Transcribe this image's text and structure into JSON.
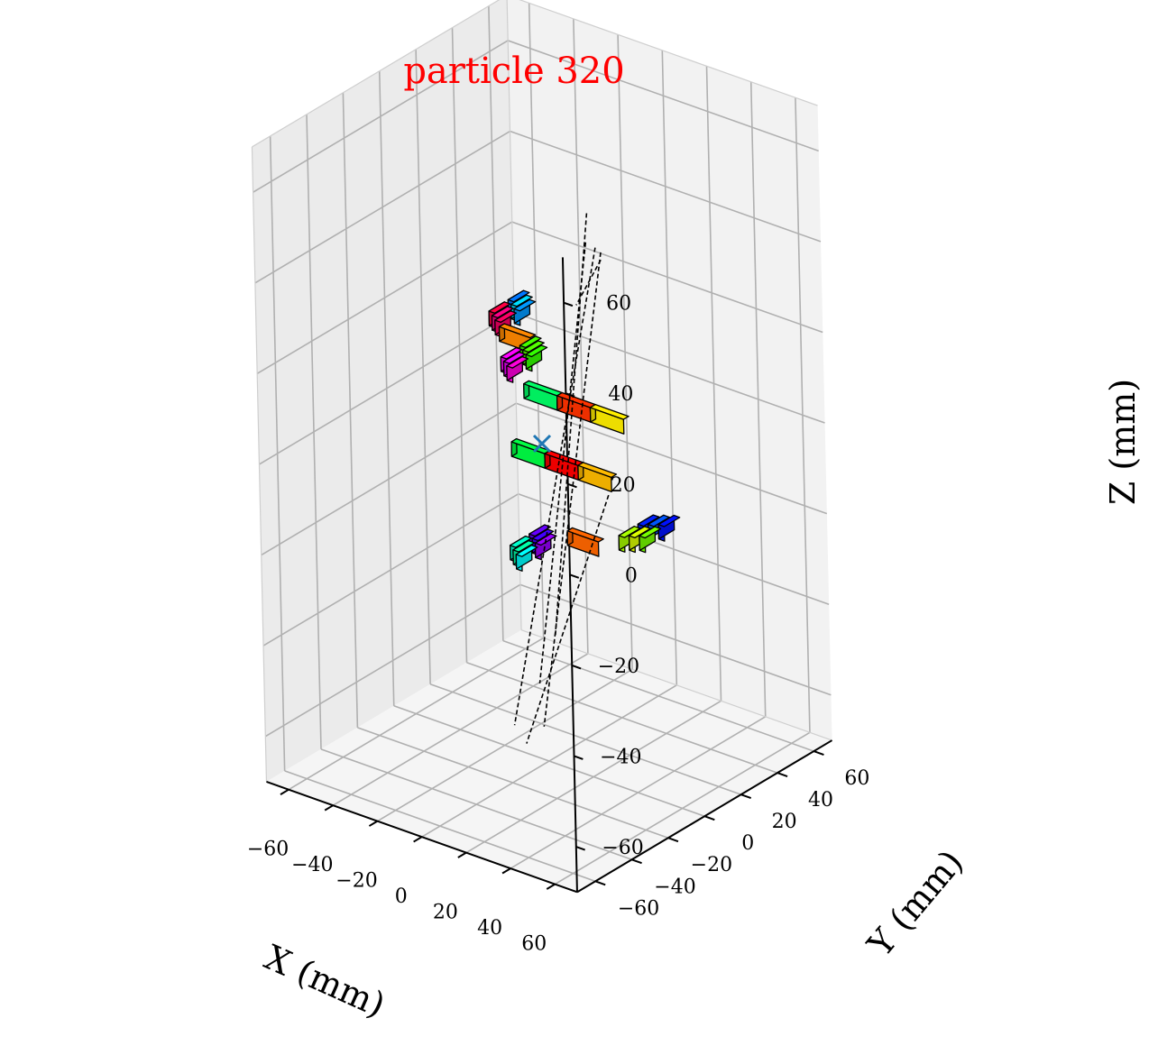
{
  "chart_data": {
    "type": "scatter",
    "title": "particle 320",
    "xlabel": "X (mm)",
    "ylabel": "Y (mm)",
    "zlabel": "Z (mm)",
    "xlim": [
      -70,
      70
    ],
    "ylim": [
      -70,
      70
    ],
    "zlim": [
      -70,
      70
    ],
    "x_ticks": [
      -60,
      -40,
      -20,
      0,
      20,
      40,
      60
    ],
    "y_ticks": [
      -60,
      -40,
      -20,
      0,
      20,
      40,
      60
    ],
    "z_ticks": [
      -60,
      -40,
      -20,
      0,
      20,
      40,
      60
    ],
    "x_tick_labels": [
      "−60",
      "−40",
      "−20",
      "0",
      "20",
      "40",
      "60"
    ],
    "y_tick_labels": [
      "−60",
      "−40",
      "−20",
      "0",
      "20",
      "40",
      "60"
    ],
    "z_tick_labels": [
      "−60",
      "−40",
      "−20",
      "0",
      "20",
      "40",
      "60"
    ],
    "grid": true,
    "marker": {
      "x": 0,
      "y": 0,
      "z": 0,
      "symbol": "x",
      "color": "#1f77b4"
    },
    "long_bars": [
      {
        "x0": -30,
        "x1": -15,
        "y": 28,
        "z": 0,
        "color": "#00ff66"
      },
      {
        "x0": -15,
        "x1": 0,
        "y": 28,
        "z": 0,
        "color": "#ff3300"
      },
      {
        "x0": 0,
        "x1": 15,
        "y": 28,
        "z": 0,
        "color": "#ffee00"
      },
      {
        "x0": -6,
        "x1": 9,
        "y": -8,
        "z": 0,
        "color": "#00ff44"
      },
      {
        "x0": 9,
        "x1": 24,
        "y": -8,
        "z": 0,
        "color": "#ff0000"
      },
      {
        "x0": 24,
        "x1": 39,
        "y": -8,
        "z": 0,
        "color": "#ffbb00"
      },
      {
        "x0": -64,
        "x1": -50,
        "y": 56,
        "z": 0,
        "color": "#ff8800"
      },
      {
        "x0": 52,
        "x1": 66,
        "y": -48,
        "z": 0,
        "color": "#ff6600"
      }
    ],
    "crystal_pairs": [
      {
        "x": -73,
        "y": 71,
        "z": 0,
        "colors": [
          "#ff0044",
          "#0077ff"
        ]
      },
      {
        "x": -70,
        "y": 69,
        "z": 0,
        "colors": [
          "#ff0088",
          "#00ddff"
        ]
      },
      {
        "x": -67,
        "y": 67,
        "z": 0,
        "colors": [
          "#ff0066",
          "#0099ff"
        ]
      },
      {
        "x": -48,
        "y": 47,
        "z": 0,
        "colors": [
          "#ff00ff",
          "#44ff00"
        ]
      },
      {
        "x": -45,
        "y": 45,
        "z": 0,
        "colors": [
          "#ee00ff",
          "#55ff00"
        ]
      },
      {
        "x": -42,
        "y": 43,
        "z": 0,
        "colors": [
          "#ff00dd",
          "#33ff00"
        ]
      },
      {
        "x": 50,
        "y": -64,
        "z": 0,
        "colors": [
          "#00ffff",
          "#9900ff"
        ]
      },
      {
        "x": 47,
        "y": -62,
        "z": 0,
        "colors": [
          "#00ffaa",
          "#4400ff"
        ]
      },
      {
        "x": 44,
        "y": -60,
        "z": 0,
        "colors": [
          "#00ffcc",
          "#6600ff"
        ]
      },
      {
        "x": 70,
        "y": -32,
        "z": 0,
        "colors": [
          "#aaff00",
          "#0022ff"
        ]
      },
      {
        "x": 73,
        "y": -30,
        "z": 0,
        "colors": [
          "#ddff00",
          "#0055ff"
        ]
      },
      {
        "x": 76,
        "y": -28,
        "z": 0,
        "colors": [
          "#77ff00",
          "#0011ff"
        ]
      }
    ],
    "dashed_tracks": [
      {
        "from": [
          1.4,
          25.3,
          45
        ],
        "to": [
          -12.4,
          19.6,
          -49.4
        ],
        "color": "#000000"
      },
      {
        "from": [
          14.9,
          8.3,
          45
        ],
        "to": [
          5.4,
          -10.6,
          -49.4
        ],
        "color": "#000000"
      },
      {
        "from": [
          20.1,
          7.2,
          45
        ],
        "to": [
          18.1,
          -39.9,
          -49.4
        ],
        "color": "#000000"
      },
      {
        "from": [
          23.9,
          5.6,
          45
        ],
        "to": [
          27.1,
          -34.7,
          -49.4
        ],
        "color": "#000000"
      },
      {
        "from": [
          27.5,
          1.3,
          45
        ],
        "to": [
          22.4,
          -6.5,
          36
        ],
        "color": "#000000"
      },
      {
        "from": [
          32.3,
          -3.1,
          -5
        ],
        "to": [
          30.2,
          -48.1,
          -49.4
        ],
        "color": "#000000"
      }
    ]
  }
}
